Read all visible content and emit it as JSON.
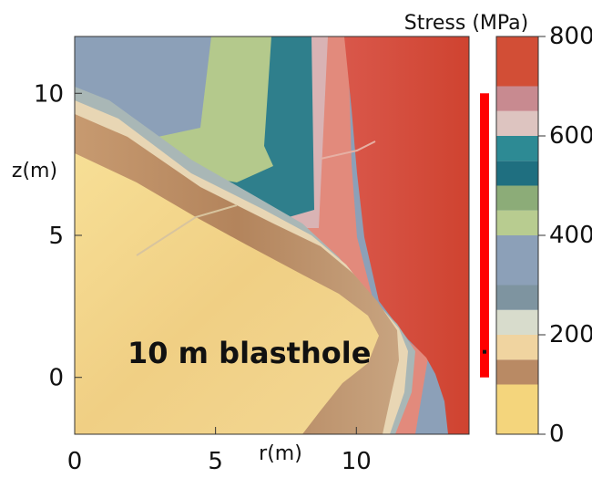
{
  "chart_data": {
    "type": "heatmap",
    "title": "",
    "xlabel": "r(m)",
    "ylabel": "z(m)",
    "xlim": [
      0,
      14
    ],
    "ylim": [
      -2,
      12
    ],
    "x_ticks": [
      0,
      5,
      10
    ],
    "y_ticks": [
      0,
      5,
      10
    ],
    "colorbar": {
      "label": "Stress (MPa)",
      "range": [
        0,
        800
      ],
      "ticks": [
        0,
        200,
        400,
        600,
        800
      ],
      "levels": [
        {
          "from": 0,
          "to": 100,
          "color": "#f4d57c"
        },
        {
          "from": 100,
          "to": 150,
          "color": "#b98a64"
        },
        {
          "from": 150,
          "to": 200,
          "color": "#f0d4a0"
        },
        {
          "from": 200,
          "to": 250,
          "color": "#d8dccc"
        },
        {
          "from": 250,
          "to": 300,
          "color": "#7e94a0"
        },
        {
          "from": 300,
          "to": 400,
          "color": "#8ca0b8"
        },
        {
          "from": 400,
          "to": 450,
          "color": "#b8cc90"
        },
        {
          "from": 450,
          "to": 500,
          "color": "#8cac78"
        },
        {
          "from": 500,
          "to": 550,
          "color": "#1f6f80"
        },
        {
          "from": 550,
          "to": 600,
          "color": "#2d8a94"
        },
        {
          "from": 600,
          "to": 650,
          "color": "#ddc4c0"
        },
        {
          "from": 650,
          "to": 700,
          "color": "#c88a90"
        },
        {
          "from": 700,
          "to": 800,
          "color": "#d24e36"
        }
      ]
    },
    "blasthole": {
      "label": "10 m blasthole",
      "r": 14.5,
      "z_bottom": 0,
      "z_top": 10,
      "color": "#ff0000",
      "marker_z": 0.9
    }
  }
}
